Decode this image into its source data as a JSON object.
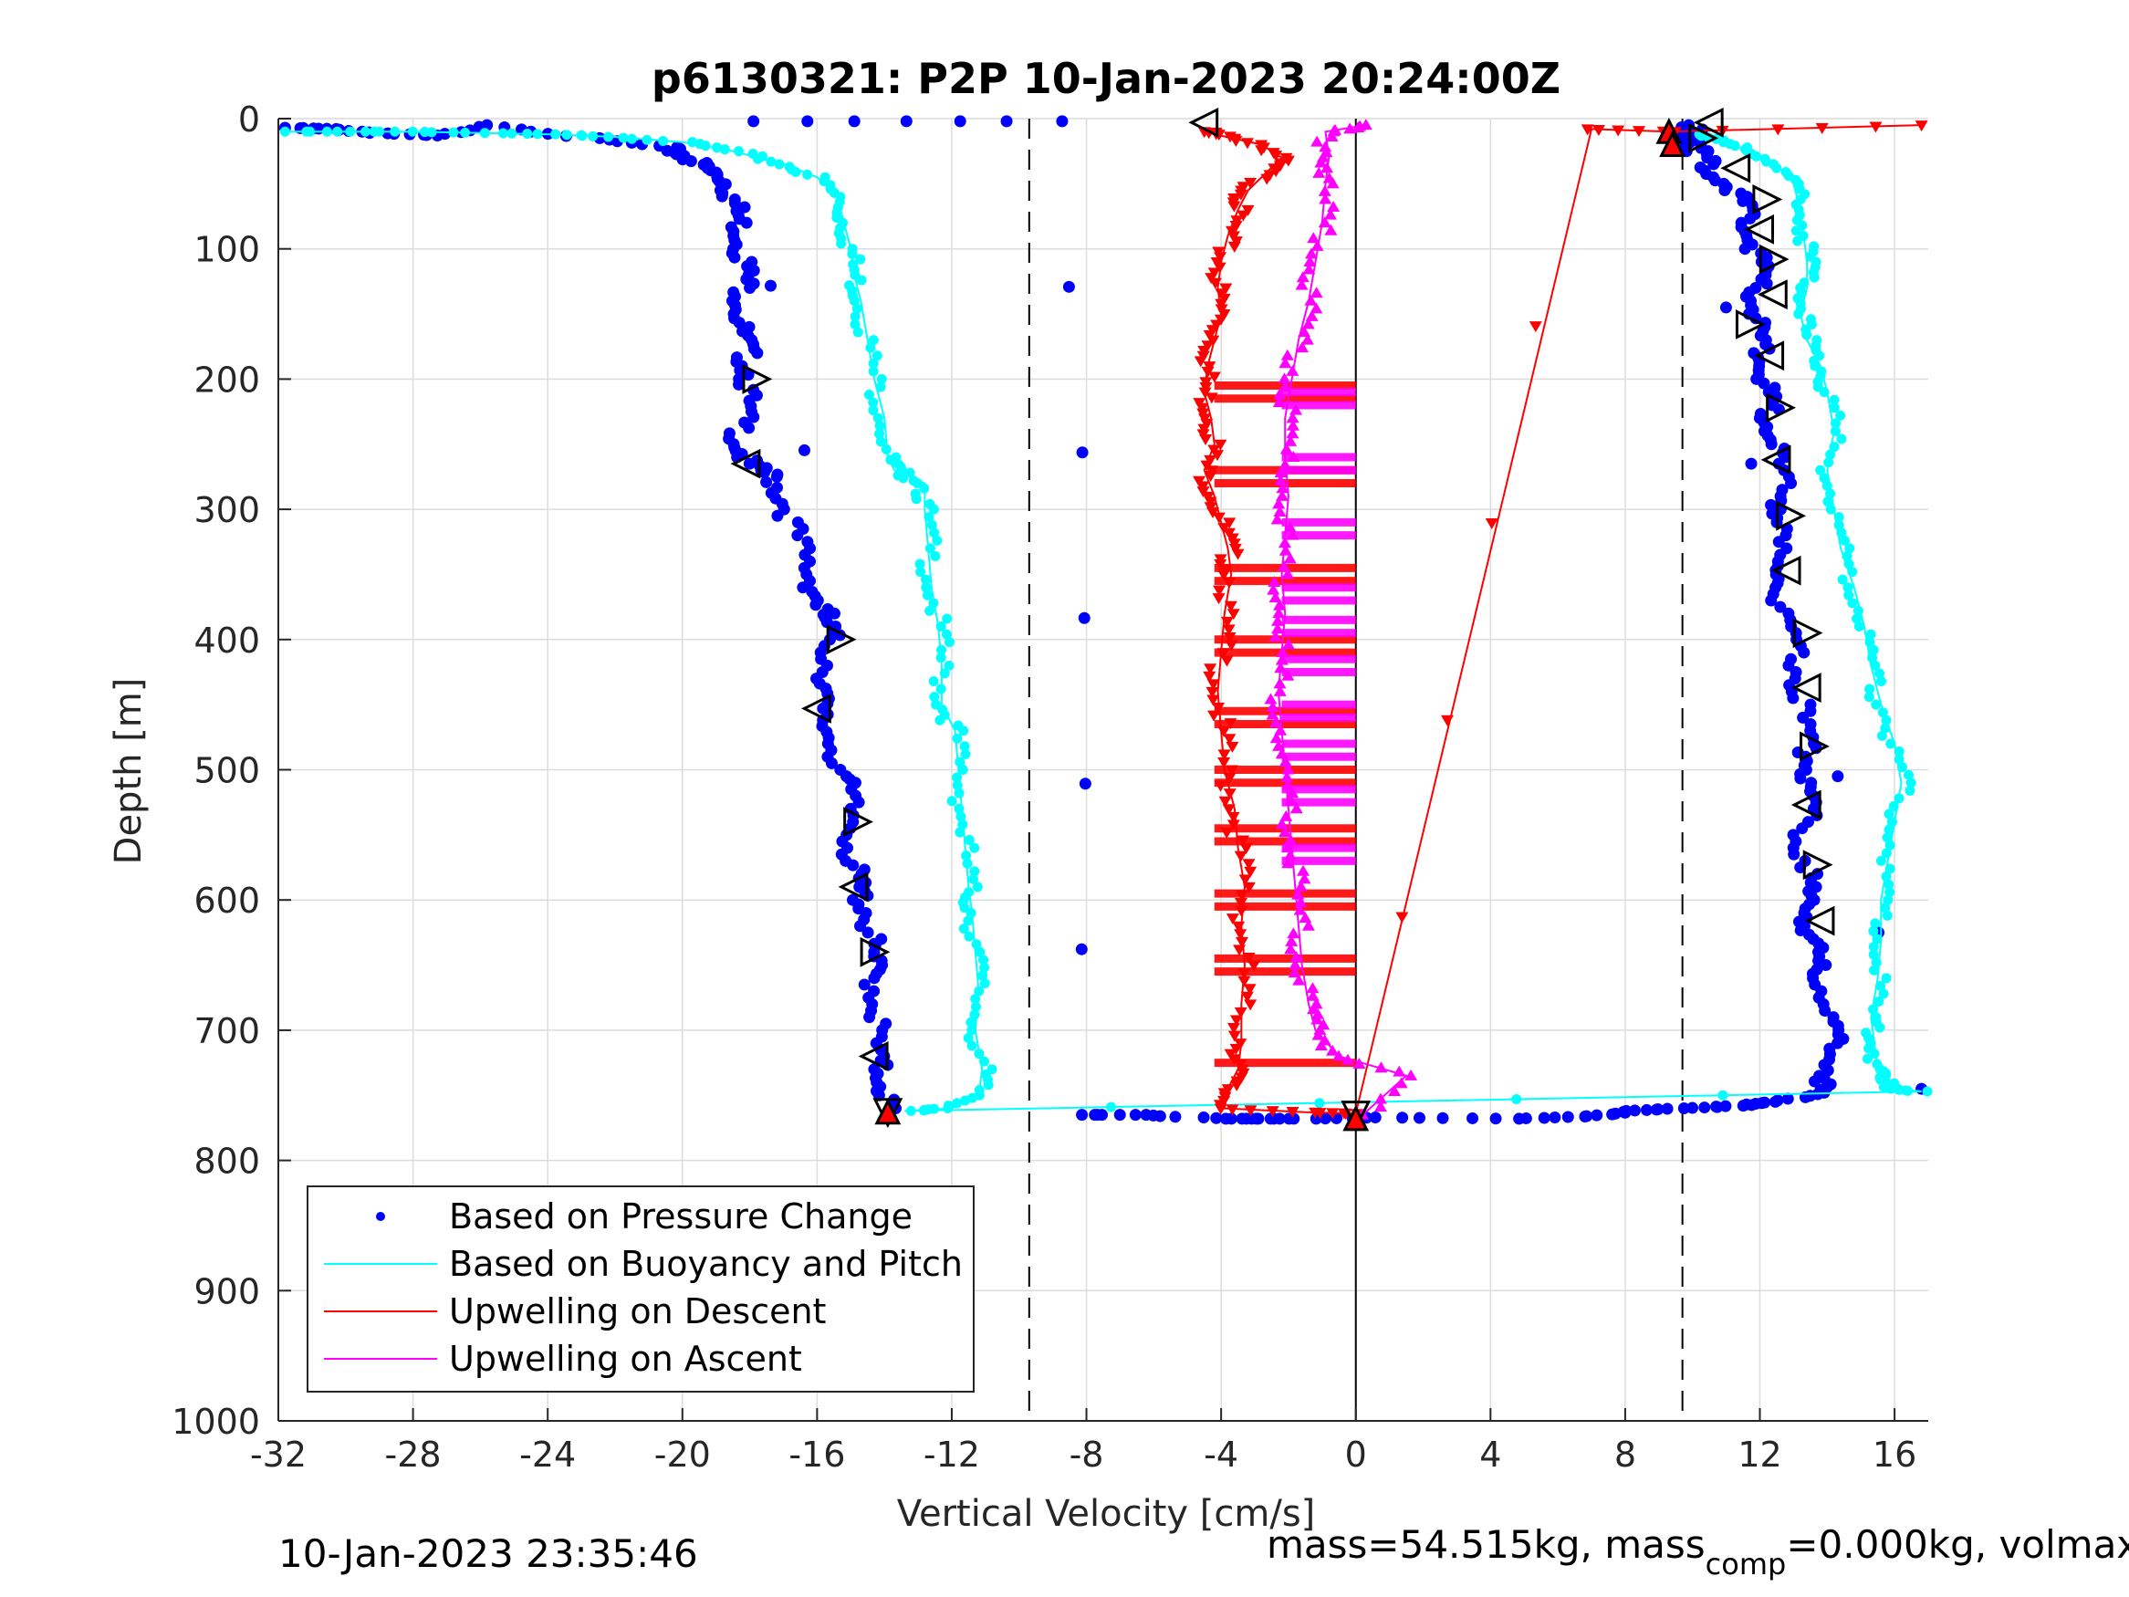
{
  "chart_data": {
    "type": "scatter",
    "title": "p6130321: P2P 10-Jan-2023 20:24:00Z",
    "xlabel": "Vertical Velocity [cm/s]",
    "ylabel": "Depth [m]",
    "xlim": [
      -32,
      17
    ],
    "ylim": [
      0,
      1000
    ],
    "y_reversed": true,
    "grid": true,
    "xticks": [
      -32,
      -28,
      -24,
      -20,
      -16,
      -12,
      -8,
      -4,
      0,
      4,
      8,
      12,
      16
    ],
    "yticks": [
      0,
      100,
      200,
      300,
      400,
      500,
      600,
      700,
      800,
      900,
      1000
    ],
    "legend_position": "bottom-left",
    "vertical_dashed_lines": [
      -9.7,
      9.7
    ],
    "zero_line": 0,
    "series": [
      {
        "name": "Based on Pressure Change",
        "color": "#0000ff",
        "marker": "dot",
        "points": [
          [
            -31.8,
            7
          ],
          [
            -30.5,
            8
          ],
          [
            -29,
            11
          ],
          [
            -27.5,
            13
          ],
          [
            -25.5,
            5
          ],
          [
            -22.8,
            15
          ],
          [
            -20.5,
            22
          ],
          [
            -19.8,
            30
          ],
          [
            -19.3,
            38
          ],
          [
            -18.7,
            48
          ],
          [
            -18.5,
            62
          ],
          [
            -18.3,
            80
          ],
          [
            -18.2,
            100
          ],
          [
            -18.1,
            120
          ],
          [
            -18.2,
            140
          ],
          [
            -18.3,
            160
          ],
          [
            -18.1,
            180
          ],
          [
            -18,
            200
          ],
          [
            -18.2,
            225
          ],
          [
            -18.3,
            250
          ],
          [
            -18.1,
            265
          ],
          [
            -17.3,
            275
          ],
          [
            -16.9,
            300
          ],
          [
            -16.5,
            330
          ],
          [
            -16.1,
            360
          ],
          [
            -15.8,
            380
          ],
          [
            -15.6,
            400
          ],
          [
            -15.7,
            430
          ],
          [
            -16,
            453
          ],
          [
            -15.5,
            480
          ],
          [
            -15.2,
            510
          ],
          [
            -14.9,
            540
          ],
          [
            -15,
            570
          ],
          [
            -14.8,
            590
          ],
          [
            -14.5,
            610
          ],
          [
            -14.4,
            640
          ],
          [
            -14.3,
            660
          ],
          [
            -14.2,
            690
          ],
          [
            -14.3,
            720
          ],
          [
            -14,
            740
          ],
          [
            -13.9,
            760
          ],
          [
            -17.8,
            2
          ],
          [
            -8.6,
            2
          ],
          [
            -8.2,
            765
          ],
          [
            -6.2,
            765
          ],
          [
            -4,
            768
          ],
          [
            -2.7,
            768
          ],
          [
            -1.3,
            768
          ],
          [
            0.5,
            767
          ],
          [
            5,
            768
          ],
          [
            6.8,
            766
          ],
          [
            8.3,
            762
          ],
          [
            9.6,
            760
          ],
          [
            11.2,
            758
          ],
          [
            12.6,
            755
          ],
          [
            13.6,
            748
          ],
          [
            14,
            735
          ],
          [
            14.2,
            710
          ],
          [
            14.1,
            690
          ],
          [
            13.8,
            660
          ],
          [
            13.6,
            640
          ],
          [
            13.5,
            620
          ],
          [
            13.3,
            600
          ],
          [
            13.4,
            580
          ],
          [
            13.3,
            550
          ],
          [
            13.4,
            520
          ],
          [
            13.5,
            500
          ],
          [
            13.4,
            480
          ],
          [
            13.2,
            450
          ],
          [
            13.1,
            420
          ],
          [
            12.8,
            390
          ],
          [
            12.6,
            360
          ],
          [
            12.5,
            340
          ],
          [
            12.6,
            310
          ],
          [
            12.7,
            290
          ],
          [
            12.5,
            260
          ],
          [
            12.4,
            240
          ],
          [
            12.2,
            220
          ],
          [
            12.1,
            200
          ],
          [
            12,
            180
          ],
          [
            11.9,
            160
          ],
          [
            11.8,
            140
          ],
          [
            12,
            120
          ],
          [
            11.8,
            100
          ],
          [
            11.7,
            80
          ],
          [
            11.3,
            60
          ],
          [
            10.8,
            45
          ],
          [
            10.3,
            30
          ],
          [
            10,
            15
          ],
          [
            10,
            5
          ],
          [
            9.7,
            25
          ],
          [
            16.8,
            745
          ]
        ]
      },
      {
        "name": "Based on Buoyancy and Pitch",
        "color": "#00ffff",
        "marker": "circle-line",
        "points": [
          [
            -31.8,
            10
          ],
          [
            -30,
            10
          ],
          [
            -28,
            10
          ],
          [
            -26,
            11
          ],
          [
            -24,
            12
          ],
          [
            -22,
            14
          ],
          [
            -20,
            18
          ],
          [
            -18.5,
            25
          ],
          [
            -17,
            35
          ],
          [
            -16,
            45
          ],
          [
            -15.4,
            60
          ],
          [
            -15.2,
            80
          ],
          [
            -15,
            100
          ],
          [
            -14.9,
            120
          ],
          [
            -14.7,
            140
          ],
          [
            -14.5,
            170
          ],
          [
            -14.3,
            200
          ],
          [
            -14,
            230
          ],
          [
            -13.9,
            260
          ],
          [
            -13.7,
            270
          ],
          [
            -12.8,
            280
          ],
          [
            -12.8,
            300
          ],
          [
            -12.7,
            330
          ],
          [
            -12.6,
            360
          ],
          [
            -12.4,
            390
          ],
          [
            -12.3,
            420
          ],
          [
            -12.3,
            450
          ],
          [
            -11.9,
            470
          ],
          [
            -11.8,
            500
          ],
          [
            -11.7,
            530
          ],
          [
            -11.6,
            560
          ],
          [
            -11.5,
            590
          ],
          [
            -11.4,
            610
          ],
          [
            -11.3,
            640
          ],
          [
            -11.2,
            670
          ],
          [
            -11.3,
            700
          ],
          [
            -11.1,
            730
          ],
          [
            -11.2,
            750
          ],
          [
            -12,
            760
          ],
          [
            -13.4,
            762
          ],
          [
            16.8,
            747
          ],
          [
            16,
            745
          ],
          [
            15.5,
            738
          ],
          [
            15.5,
            730
          ],
          [
            15.4,
            710
          ],
          [
            15.3,
            690
          ],
          [
            15.5,
            660
          ],
          [
            15.6,
            630
          ],
          [
            15.6,
            600
          ],
          [
            15.8,
            570
          ],
          [
            16,
            540
          ],
          [
            16.2,
            510
          ],
          [
            16,
            480
          ],
          [
            15.6,
            450
          ],
          [
            15.3,
            420
          ],
          [
            15.1,
            390
          ],
          [
            14.8,
            360
          ],
          [
            14.4,
            330
          ],
          [
            14.2,
            300
          ],
          [
            14,
            270
          ],
          [
            14.2,
            240
          ],
          [
            14,
            210
          ],
          [
            13.8,
            190
          ],
          [
            13.4,
            170
          ],
          [
            13.2,
            150
          ],
          [
            13.4,
            130
          ],
          [
            13.4,
            110
          ],
          [
            13.3,
            90
          ],
          [
            13.2,
            70
          ],
          [
            13,
            50
          ],
          [
            12.5,
            35
          ],
          [
            11.8,
            25
          ],
          [
            10.8,
            18
          ],
          [
            10.2,
            12
          ]
        ]
      },
      {
        "name": "Upwelling on Descent",
        "color": "#ff0000",
        "marker": "triangle-down",
        "points": [
          [
            -4.5,
            10
          ],
          [
            -4.2,
            12
          ],
          [
            -2.8,
            20
          ],
          [
            -2.2,
            30
          ],
          [
            -2.6,
            40
          ],
          [
            -3.2,
            55
          ],
          [
            -3.5,
            70
          ],
          [
            -3.8,
            90
          ],
          [
            -4,
            110
          ],
          [
            -4.1,
            130
          ],
          [
            -4,
            150
          ],
          [
            -4.2,
            170
          ],
          [
            -4.4,
            190
          ],
          [
            -4.5,
            210
          ],
          [
            -4.3,
            230
          ],
          [
            -4.2,
            250
          ],
          [
            -4.5,
            270
          ],
          [
            -4.2,
            290
          ],
          [
            -4,
            310
          ],
          [
            -3.8,
            330
          ],
          [
            -3.7,
            350
          ],
          [
            -3.9,
            380
          ],
          [
            -4,
            410
          ],
          [
            -4.1,
            440
          ],
          [
            -4,
            470
          ],
          [
            -3.9,
            500
          ],
          [
            -3.6,
            530
          ],
          [
            -3.5,
            560
          ],
          [
            -3.3,
            590
          ],
          [
            -3.4,
            620
          ],
          [
            -3.3,
            650
          ],
          [
            -3.4,
            680
          ],
          [
            -3.4,
            710
          ],
          [
            -3.5,
            730
          ],
          [
            -3.8,
            745
          ],
          [
            -3.9,
            760
          ],
          [
            -1.5,
            763
          ],
          [
            0,
            764
          ],
          [
            7,
            8
          ],
          [
            9.3,
            10
          ],
          [
            16.8,
            5
          ]
        ]
      },
      {
        "name": "Upwelling on Ascent",
        "color": "#ff00ff",
        "marker": "triangle-up",
        "points": [
          [
            0.2,
            765
          ],
          [
            1.5,
            735
          ],
          [
            -0.5,
            720
          ],
          [
            -1.2,
            700
          ],
          [
            -1.4,
            680
          ],
          [
            -1.6,
            650
          ],
          [
            -1.7,
            620
          ],
          [
            -1.8,
            590
          ],
          [
            -1.9,
            560
          ],
          [
            -2,
            530
          ],
          [
            -2.1,
            500
          ],
          [
            -2.2,
            470
          ],
          [
            -2.3,
            440
          ],
          [
            -2.2,
            410
          ],
          [
            -2.1,
            380
          ],
          [
            -2.2,
            350
          ],
          [
            -2.1,
            320
          ],
          [
            -2,
            290
          ],
          [
            -2.1,
            260
          ],
          [
            -2.1,
            230
          ],
          [
            -1.9,
            200
          ],
          [
            -1.7,
            170
          ],
          [
            -1.4,
            140
          ],
          [
            -1.2,
            110
          ],
          [
            -1,
            80
          ],
          [
            -0.9,
            50
          ],
          [
            -0.8,
            30
          ],
          [
            -0.9,
            10
          ],
          [
            0.3,
            5
          ]
        ]
      }
    ],
    "shading_bands": {
      "descent_depths": [
        205,
        215,
        270,
        280,
        345,
        355,
        400,
        410,
        455,
        465,
        500,
        510,
        545,
        555,
        595,
        605,
        645,
        655,
        725
      ],
      "ascent_depths": [
        210,
        220,
        260,
        270,
        310,
        320,
        360,
        370,
        385,
        395,
        415,
        425,
        450,
        460,
        480,
        490,
        515,
        525,
        560,
        570
      ]
    },
    "open_triangle_markers": [
      [
        -17.8,
        200,
        "right"
      ],
      [
        -18.1,
        265,
        "left"
      ],
      [
        -15.3,
        400,
        "right"
      ],
      [
        -16,
        453,
        "left"
      ],
      [
        -14.8,
        540,
        "right"
      ],
      [
        -14.9,
        590,
        "left"
      ],
      [
        -14.3,
        640,
        "right"
      ],
      [
        -14.3,
        720,
        "left"
      ],
      [
        -13.9,
        763,
        "down"
      ],
      [
        -4.5,
        3,
        "left"
      ],
      [
        10.5,
        3,
        "left"
      ],
      [
        10.3,
        15,
        "right"
      ],
      [
        11.3,
        38,
        "left"
      ],
      [
        12.2,
        62,
        "right"
      ],
      [
        12,
        85,
        "left"
      ],
      [
        12.4,
        108,
        "right"
      ],
      [
        12.4,
        135,
        "left"
      ],
      [
        11.7,
        158,
        "right"
      ],
      [
        12.3,
        182,
        "left"
      ],
      [
        12.6,
        222,
        "right"
      ],
      [
        12.5,
        262,
        "left"
      ],
      [
        12.9,
        305,
        "right"
      ],
      [
        12.8,
        347,
        "left"
      ],
      [
        13.4,
        395,
        "right"
      ],
      [
        13.4,
        437,
        "left"
      ],
      [
        13.6,
        482,
        "right"
      ],
      [
        13.4,
        527,
        "left"
      ],
      [
        13.7,
        573,
        "right"
      ],
      [
        13.8,
        616,
        "left"
      ],
      [
        0,
        765,
        "down"
      ]
    ],
    "red_filled_triangles": [
      [
        -13.9,
        763
      ],
      [
        9.3,
        10
      ],
      [
        9.4,
        20
      ],
      [
        0,
        768
      ]
    ]
  },
  "footer": {
    "timestamp": "10-Jan-2023 23:35:46",
    "mass_prefix": "mass=54.515kg, mass",
    "mass_sub": "comp",
    "mass_suffix": "=0.000kg, volmax"
  }
}
